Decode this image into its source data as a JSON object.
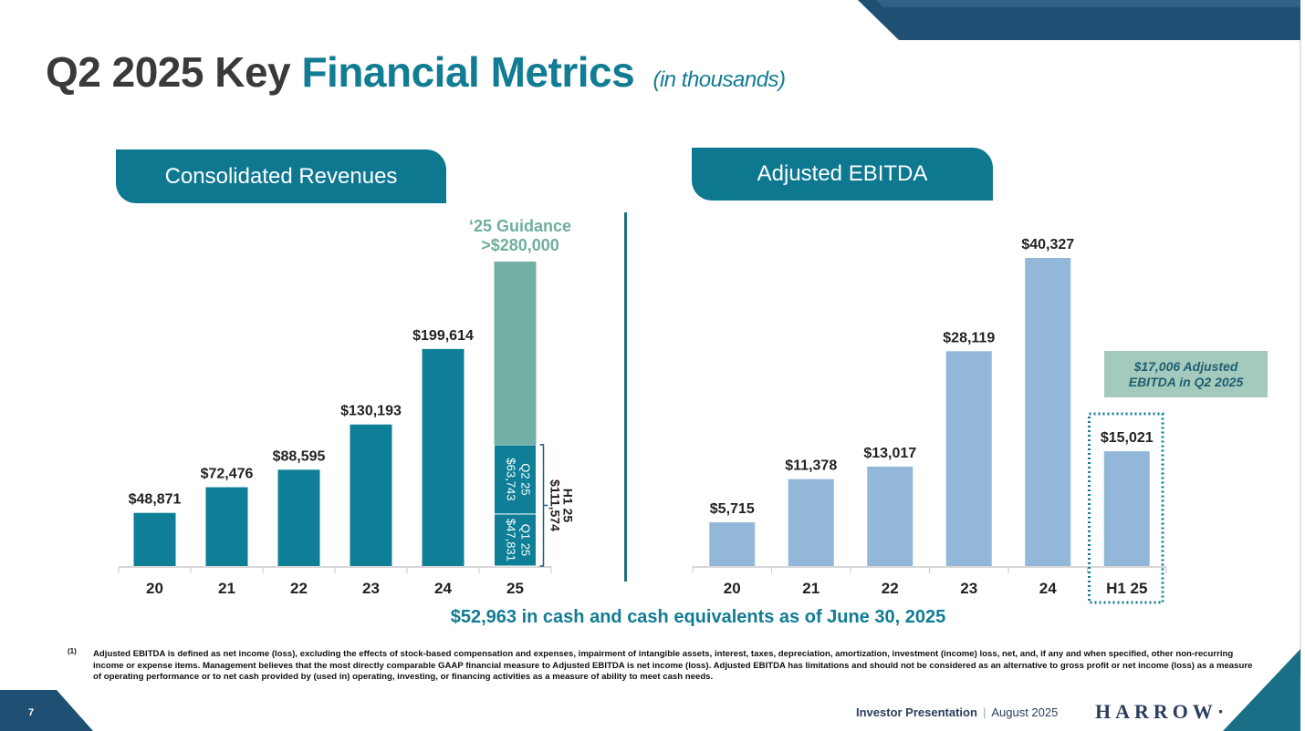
{
  "title": {
    "part1": "Q2 2025 Key",
    "part2": "Financial Metrics",
    "sub": "(in thousands)"
  },
  "tabs": {
    "revenue": "Consolidated Revenues",
    "ebitda": "Adjusted EBITDA"
  },
  "guidance": {
    "line1": "‘25 Guidance",
    "line2": ">$280,000"
  },
  "callout": {
    "line1": "$17,006 Adjusted",
    "line2": "EBITDA in Q2 2025"
  },
  "cash_note": "$52,963 in cash and cash equivalents as of June 30, 2025",
  "footnote": {
    "marker": "(1)",
    "text": "Adjusted EBITDA is defined as net income (loss), excluding the effects of stock-based compensation and expenses, impairment of intangible assets, interest, taxes, depreciation, amortization, investment (income) loss, net, and, if any and when specified, other non-recurring income or expense items. Management believes that the most directly comparable GAAP financial measure to Adjusted EBITDA is net income (loss). Adjusted EBITDA has limitations and should not be considered as an alternative to gross profit or net income (loss) as a measure of operating performance or to net cash provided by (used in) operating, investing, or financing activities as a measure of ability to meet cash needs."
  },
  "footer": {
    "page": "7",
    "presentation": "Investor Presentation",
    "separator": "|",
    "date": "August 2025",
    "logo": "HARROW·"
  },
  "colors": {
    "teal": "#117c93",
    "bar_rev": "#0e7f96",
    "bar_ebitda": "#93b7d9",
    "guidance": "#72b0a3"
  },
  "chart_data": [
    {
      "type": "bar",
      "title": "Consolidated Revenues",
      "categories": [
        "20",
        "21",
        "22",
        "23",
        "24",
        "25"
      ],
      "values": [
        48871,
        72476,
        88595,
        130193,
        199614,
        null
      ],
      "labels": [
        "$48,871",
        "$72,476",
        "$88,595",
        "$130,193",
        "$199,614",
        ""
      ],
      "ylim": [
        0,
        290000
      ],
      "stack_2025": [
        {
          "name": "Q1 25",
          "value": 47831,
          "label_top": "Q1 25",
          "label_bottom": "$47,831"
        },
        {
          "name": "Q2 25",
          "value": 63743,
          "label_top": "Q2 25",
          "label_bottom": "$63,743"
        },
        {
          "name": "Remaining '25 Guidance",
          "value": 168426
        }
      ],
      "guidance_total": 280000,
      "h1_bracket": {
        "line1": "H1 25",
        "line2": "$111,574",
        "value": 111574
      }
    },
    {
      "type": "bar",
      "title": "Adjusted EBITDA",
      "categories": [
        "20",
        "21",
        "22",
        "23",
        "24",
        "H1 25"
      ],
      "values": [
        5715,
        11378,
        13017,
        28119,
        40327,
        15021
      ],
      "labels": [
        "$5,715",
        "$11,378",
        "$13,017",
        "$28,119",
        "$40,327",
        "$15,021"
      ],
      "ylim": [
        0,
        42700
      ],
      "highlight": "H1 25"
    }
  ]
}
